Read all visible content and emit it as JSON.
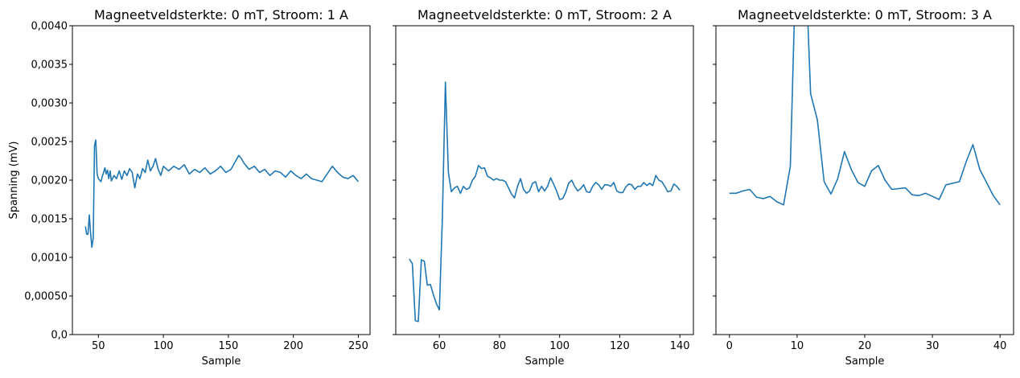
{
  "chart_data": [
    {
      "type": "line",
      "title": "Magneetveldsterkte: 0 mT, Stroom: 1 A",
      "xlabel": "Sample",
      "ylabel": "Spanning (mV)",
      "xlim": [
        30,
        259
      ],
      "ylim": [
        0,
        0.004
      ],
      "xticks": [
        {
          "v": 50,
          "label": "50"
        },
        {
          "v": 100,
          "label": "100"
        },
        {
          "v": 150,
          "label": "150"
        },
        {
          "v": 200,
          "label": "200"
        },
        {
          "v": 250,
          "label": "250"
        }
      ],
      "yticks": [
        {
          "v": 0,
          "label": "0,0"
        },
        {
          "v": 0.0005,
          "label": "0,00050"
        },
        {
          "v": 0.001,
          "label": "0,0010"
        },
        {
          "v": 0.0015,
          "label": "0,0015"
        },
        {
          "v": 0.002,
          "label": "0,0020"
        },
        {
          "v": 0.0025,
          "label": "0,0025"
        },
        {
          "v": 0.003,
          "label": "0,0030"
        },
        {
          "v": 0.0035,
          "label": "0,0035"
        },
        {
          "v": 0.004,
          "label": "0,0040"
        }
      ],
      "color": "#1f77b4",
      "series": [
        {
          "x": [
            40,
            41,
            42,
            43,
            44,
            45,
            46,
            47,
            48,
            49,
            50,
            51,
            52,
            53,
            54,
            55,
            56,
            57,
            58,
            59,
            60,
            62,
            64,
            66,
            68,
            70,
            72,
            74,
            76,
            78,
            80,
            82,
            84,
            86,
            88,
            90,
            92,
            94,
            96,
            98,
            100,
            104,
            108,
            112,
            116,
            120,
            124,
            128,
            132,
            136,
            140,
            144,
            148,
            152,
            156,
            158,
            160,
            162,
            164,
            166,
            170,
            174,
            178,
            182,
            186,
            190,
            194,
            198,
            202,
            206,
            210,
            214,
            218,
            222,
            226,
            230,
            234,
            238,
            242,
            246,
            250
          ],
          "y": [
            0.0014,
            0.0013,
            0.0013,
            0.00155,
            0.00132,
            0.00113,
            0.00125,
            0.00245,
            0.00252,
            0.00208,
            0.00202,
            0.002,
            0.00198,
            0.00205,
            0.0021,
            0.00216,
            0.00208,
            0.00213,
            0.00202,
            0.00212,
            0.00199,
            0.00206,
            0.00202,
            0.00212,
            0.00201,
            0.00212,
            0.00206,
            0.00215,
            0.0021,
            0.0019,
            0.00208,
            0.00202,
            0.00215,
            0.0021,
            0.00226,
            0.00212,
            0.00218,
            0.00228,
            0.00214,
            0.00206,
            0.00218,
            0.00212,
            0.00218,
            0.00214,
            0.0022,
            0.00208,
            0.00214,
            0.0021,
            0.00216,
            0.00208,
            0.00212,
            0.00218,
            0.0021,
            0.00214,
            0.00226,
            0.00232,
            0.00228,
            0.00222,
            0.00218,
            0.00214,
            0.00218,
            0.0021,
            0.00214,
            0.00206,
            0.00212,
            0.0021,
            0.00204,
            0.00212,
            0.00206,
            0.00202,
            0.00208,
            0.00202,
            0.002,
            0.00198,
            0.00208,
            0.00218,
            0.0021,
            0.00204,
            0.00202,
            0.00206,
            0.00198
          ]
        }
      ]
    },
    {
      "type": "line",
      "title": "Magneetveldsterkte: 0 mT, Stroom: 2 A",
      "xlabel": "Sample",
      "ylabel": "",
      "xlim": [
        45.5,
        144.5
      ],
      "ylim": [
        0,
        0.004
      ],
      "xticks": [
        {
          "v": 60,
          "label": "60"
        },
        {
          "v": 80,
          "label": "80"
        },
        {
          "v": 100,
          "label": "100"
        },
        {
          "v": 120,
          "label": "120"
        },
        {
          "v": 140,
          "label": "140"
        }
      ],
      "yticks": [
        {
          "v": 0,
          "label": ""
        },
        {
          "v": 0.0005,
          "label": ""
        },
        {
          "v": 0.001,
          "label": ""
        },
        {
          "v": 0.0015,
          "label": ""
        },
        {
          "v": 0.002,
          "label": ""
        },
        {
          "v": 0.0025,
          "label": ""
        },
        {
          "v": 0.003,
          "label": ""
        },
        {
          "v": 0.0035,
          "label": ""
        },
        {
          "v": 0.004,
          "label": ""
        }
      ],
      "color": "#1f77b4",
      "series": [
        {
          "x": [
            50,
            51,
            52,
            53,
            54,
            55,
            56,
            57,
            58,
            59,
            60,
            61,
            62,
            63,
            64,
            65,
            66,
            67,
            68,
            69,
            70,
            71,
            72,
            73,
            74,
            75,
            76,
            77,
            78,
            79,
            80,
            81,
            82,
            83,
            84,
            85,
            86,
            87,
            88,
            89,
            90,
            91,
            92,
            93,
            94,
            95,
            96,
            97,
            98,
            99,
            100,
            101,
            102,
            103,
            104,
            105,
            106,
            107,
            108,
            109,
            110,
            111,
            112,
            113,
            114,
            115,
            116,
            117,
            118,
            119,
            120,
            121,
            122,
            123,
            124,
            125,
            126,
            127,
            128,
            129,
            130,
            131,
            132,
            133,
            134,
            135,
            136,
            137,
            138,
            139,
            140
          ],
          "y": [
            0.00098,
            0.00092,
            0.00018,
            0.00017,
            0.00097,
            0.00095,
            0.00064,
            0.00065,
            0.00052,
            0.0004,
            0.00032,
            0.0015,
            0.00327,
            0.0021,
            0.00185,
            0.0019,
            0.00192,
            0.00183,
            0.00192,
            0.00188,
            0.0019,
            0.002,
            0.00205,
            0.00219,
            0.00215,
            0.00216,
            0.00205,
            0.00203,
            0.002,
            0.00202,
            0.002,
            0.002,
            0.00198,
            0.0019,
            0.00182,
            0.00177,
            0.00192,
            0.00202,
            0.00188,
            0.00183,
            0.00186,
            0.00196,
            0.00198,
            0.00185,
            0.00192,
            0.00186,
            0.00192,
            0.00203,
            0.00195,
            0.00186,
            0.00175,
            0.00176,
            0.00184,
            0.00196,
            0.002,
            0.00192,
            0.00186,
            0.00189,
            0.00194,
            0.00185,
            0.00184,
            0.00192,
            0.00197,
            0.00194,
            0.00188,
            0.00194,
            0.00194,
            0.00192,
            0.00197,
            0.00186,
            0.00184,
            0.00184,
            0.00191,
            0.00195,
            0.00194,
            0.00188,
            0.00192,
            0.00192,
            0.00197,
            0.00193,
            0.00196,
            0.00193,
            0.00206,
            0.002,
            0.00198,
            0.00192,
            0.00185,
            0.00186,
            0.00195,
            0.00192,
            0.00187
          ]
        }
      ]
    },
    {
      "type": "line",
      "title": "Magneetveldsterkte: 0 mT, Stroom: 3 A",
      "xlabel": "Sample",
      "ylabel": "",
      "xlim": [
        -2,
        42
      ],
      "ylim": [
        0,
        0.004
      ],
      "xticks": [
        {
          "v": 0,
          "label": "0"
        },
        {
          "v": 10,
          "label": "10"
        },
        {
          "v": 20,
          "label": "20"
        },
        {
          "v": 30,
          "label": "30"
        },
        {
          "v": 40,
          "label": "40"
        }
      ],
      "yticks": [
        {
          "v": 0,
          "label": ""
        },
        {
          "v": 0.0005,
          "label": ""
        },
        {
          "v": 0.001,
          "label": ""
        },
        {
          "v": 0.0015,
          "label": ""
        },
        {
          "v": 0.002,
          "label": ""
        },
        {
          "v": 0.0025,
          "label": ""
        },
        {
          "v": 0.003,
          "label": ""
        },
        {
          "v": 0.0035,
          "label": ""
        },
        {
          "v": 0.004,
          "label": ""
        }
      ],
      "color": "#1f77b4",
      "series": [
        {
          "x": [
            0,
            1,
            2,
            3,
            4,
            5,
            6,
            7,
            8,
            9,
            10,
            11,
            12,
            13,
            14,
            15,
            16,
            17,
            18,
            19,
            20,
            21,
            22,
            23,
            24,
            26,
            27,
            28,
            29,
            31,
            32,
            34,
            35,
            36,
            37,
            38,
            39,
            40
          ],
          "y": [
            0.00183,
            0.00183,
            0.00186,
            0.00188,
            0.00178,
            0.00176,
            0.00179,
            0.00172,
            0.00168,
            0.00218,
            0.0054,
            0.0054,
            0.00312,
            0.00278,
            0.00198,
            0.00182,
            0.00202,
            0.00237,
            0.00214,
            0.00197,
            0.00192,
            0.00212,
            0.00219,
            0.002,
            0.00188,
            0.0019,
            0.00181,
            0.0018,
            0.00183,
            0.00175,
            0.00194,
            0.00198,
            0.00224,
            0.00246,
            0.00214,
            0.00197,
            0.0018,
            0.00168
          ]
        }
      ]
    }
  ]
}
